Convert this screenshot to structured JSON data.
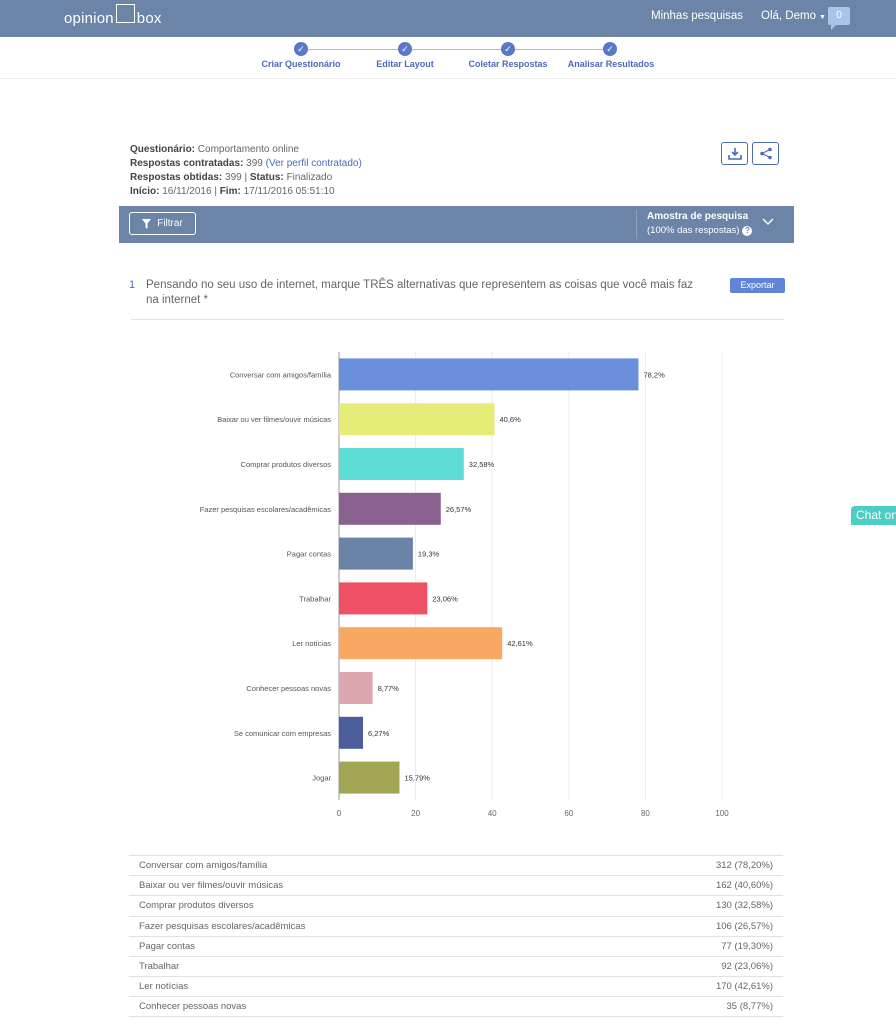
{
  "header": {
    "logo_left": "opinion",
    "logo_right": "box",
    "my_surveys": "Minhas pesquisas",
    "greeting": "Olá, Demo",
    "notifications": "0"
  },
  "steps": [
    {
      "label": "Criar Questionário"
    },
    {
      "label": "Editar Layout"
    },
    {
      "label": "Coletar Respostas"
    },
    {
      "label": "Analisar Resultados"
    }
  ],
  "survey": {
    "questionnaire_label": "Questionário:",
    "questionnaire_value": "Comportamento online",
    "contracted_label": "Respostas contratadas:",
    "contracted_value": "399",
    "contracted_link": "(Ver perfil contratado)",
    "obtained_label": "Respostas obtidas:",
    "obtained_value": "399",
    "status_label": "Status:",
    "status_value": "Finalizado",
    "start_label": "Início:",
    "start_value": "16/11/2016",
    "end_label": "Fim:",
    "end_value": "17/11/2016 05:51:10"
  },
  "filterbar": {
    "filter_label": "Filtrar",
    "sample_title": "Amostra de pesquisa",
    "sample_subtitle": "(100% das respostas)"
  },
  "question": {
    "number": "1",
    "text": "Pensando no seu uso de internet, marque TRÊS alternativas que representem as coisas que você mais faz na internet *",
    "export_label": "Exportar"
  },
  "chart_data": {
    "type": "bar",
    "orientation": "horizontal",
    "categories": [
      "Conversar com amigos/família",
      "Baixar ou ver filmes/ouvir músicas",
      "Comprar produtos diversos",
      "Fazer pesquisas escolares/acadêmicas",
      "Pagar contas",
      "Trabalhar",
      "Ler notícias",
      "Conhecer pessoas novas",
      "Se comunicar com empresas",
      "Jogar"
    ],
    "values": [
      78.2,
      40.6,
      32.58,
      26.57,
      19.3,
      23.06,
      42.61,
      8.77,
      6.27,
      15.79
    ],
    "value_labels": [
      "78,2%",
      "40,6%",
      "32,58%",
      "26,57%",
      "19,3%",
      "23,06%",
      "42,61%",
      "8,77%",
      "6,27%",
      "15,79%"
    ],
    "colors": [
      "#6a8fdc",
      "#e5ed78",
      "#5cdcd2",
      "#8a6290",
      "#6a83a6",
      "#f05064",
      "#f9a863",
      "#dba6ad",
      "#495e9b",
      "#a2a553"
    ],
    "xlim": [
      0,
      100
    ],
    "xticks": [
      "0",
      "20",
      "40",
      "60",
      "80",
      "100"
    ],
    "grid": true
  },
  "table": [
    {
      "label": "Conversar com amigos/família",
      "value": "312 (78,20%)"
    },
    {
      "label": "Baixar ou ver filmes/ouvir músicas",
      "value": "162 (40,60%)"
    },
    {
      "label": "Comprar produtos diversos",
      "value": "130 (32,58%)"
    },
    {
      "label": "Fazer pesquisas escolares/acadêmicas",
      "value": "106 (26,57%)"
    },
    {
      "label": "Pagar contas",
      "value": "77 (19,30%)"
    },
    {
      "label": "Trabalhar",
      "value": "92 (23,06%)"
    },
    {
      "label": "Ler notícias",
      "value": "170 (42,61%)"
    },
    {
      "label": "Conhecer pessoas novas",
      "value": "35 (8,77%)"
    }
  ],
  "chat": {
    "label": "Chat on"
  }
}
